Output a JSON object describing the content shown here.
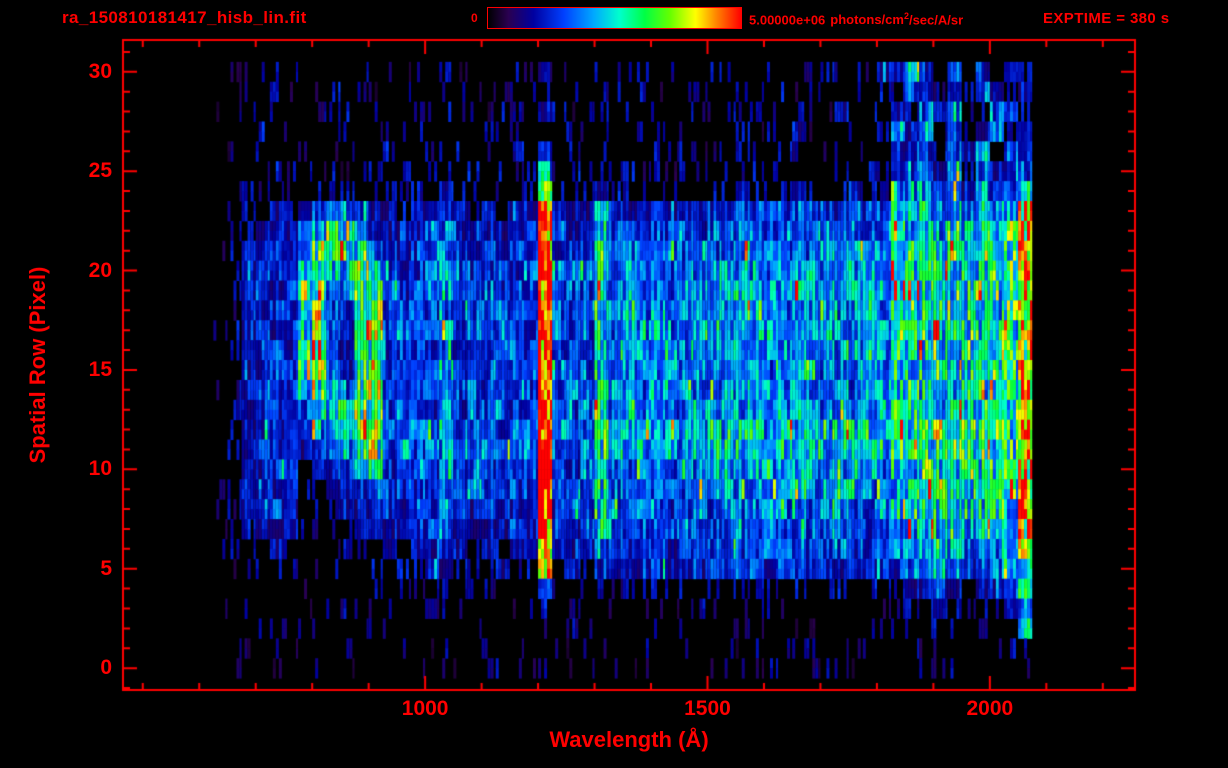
{
  "header": {
    "filename": "ra_150810181417_hisb_lin.fit",
    "exptime": "EXPTIME = 380 s",
    "colorbar": {
      "min_label": "0",
      "max_value": "5.00000e+06",
      "unit_prefix": "photons/cm",
      "unit_sup": "2",
      "unit_suffix": "/sec/A/sr"
    }
  },
  "colors": {
    "background": "#000000",
    "axis": "#ff0000",
    "text": "#ff0000"
  },
  "chart_data": {
    "type": "heatmap",
    "title": "ra_150810181417_hisb_lin.fit",
    "xlabel": "Wavelength (Å)",
    "ylabel": "Spatial Row (Pixel)",
    "x_range": [
      465,
      2257
    ],
    "y_range": [
      -1.1,
      31.6
    ],
    "x_major_ticks": [
      1000,
      1500,
      2000
    ],
    "x_minor_step": 100,
    "y_major_ticks": [
      0,
      5,
      10,
      15,
      20,
      25,
      30
    ],
    "y_minor_step": 1,
    "colorbar": {
      "min": 0,
      "max": 5000000,
      "label": "photons/cm2/sec/A/sr"
    },
    "colormap": [
      [
        0.0,
        "#000000"
      ],
      [
        0.08,
        "#2a0050"
      ],
      [
        0.18,
        "#0000a0"
      ],
      [
        0.3,
        "#0040ff"
      ],
      [
        0.42,
        "#00aaff"
      ],
      [
        0.52,
        "#00ffcc"
      ],
      [
        0.62,
        "#00ff44"
      ],
      [
        0.72,
        "#66ff00"
      ],
      [
        0.82,
        "#ffff00"
      ],
      [
        0.9,
        "#ff8800"
      ],
      [
        1.0,
        "#ff0000"
      ]
    ],
    "features": [
      {
        "name": "lyman-alpha-emission-line",
        "wavelength_A": 1200,
        "rows": [
          5,
          24
        ],
        "appearance": "saturated red/orange vertical line"
      },
      {
        "name": "airglow-blob-arc",
        "wavelength_A": [
          780,
          925
        ],
        "rows": [
          12,
          23
        ],
        "appearance": "bright green hooked ring"
      },
      {
        "name": "emission-line",
        "wavelength_A": 1300,
        "rows": [
          6,
          23
        ],
        "appearance": "green vertical streak"
      },
      {
        "name": "faint-line",
        "wavelength_A": 1030,
        "rows": [
          6,
          23
        ],
        "appearance": "cyan vertical streak"
      },
      {
        "name": "continuum-band",
        "wavelength_A": [
          1250,
          2050
        ],
        "rows": [
          5,
          24
        ],
        "appearance": "blue-green band brightening to long wavelengths"
      },
      {
        "name": "detector-edge-line",
        "wavelength_A": 2060,
        "rows": [
          2,
          24
        ],
        "appearance": "yellow-orange vertical edge"
      },
      {
        "name": "background-noise",
        "wavelength_A": [
          620,
          2075
        ],
        "rows": [
          0,
          30
        ],
        "appearance": "sparse blue/purple speckle"
      }
    ],
    "grid": {
      "x_start": 625,
      "x_step": 25,
      "cols": 58,
      "row_max": 30,
      "rows_order": "top_to_bottom",
      "intensity_scale_max": 15,
      "rows": [
        "0010210201201020201202131202012021021202101202133642514232",
        "0001201020100201120100220101102012010210201201022531425323",
        "0020100112021010212021032012120102102012021030214253612432",
        "0012012021010120101201221201021201201202130212025361423524",
        "0002101202102021220102140122210212012120212021203442536243",
        "0010212120121202212021271212121202121221212021224453625345",
        "00212022122121223212122b2223221221222322232223225564636458",
        "01223234554332334323233e333643343434444445444544667575766c",
        "01233346887433345333334f434754444545555455554555767686777c",
        "02334359a98543445434344f444855455555565556565656787787878d",
        "0234436a77a644456444445f545856555656666566656666888878888d",
        "0234347a55a744546445444f554856565666676667666766898888988d",
        "0133447a449a44445444544f545755565656666566656665888878878c",
        "0234348a439a45446454444f544856565566666656666566878888788d",
        "0134438a438944445444454f454755655656665666566656788878878c",
        "0233447a538a44546445444f545856556565666566656666878887888d",
        "01343469759a44445454444f454755565656665666566566788878788c",
        "0234435878a945446444544f545856565566666566656656878788878d",
        "02343446679a54556455455f555866666767777677767776988989898d",
        "02344334568955456545545f555866676667777677767767898998889d",
        "01334423446744545444544f545755565656666566656665878878878c",
        "02343412334544446454444f454755655565665666566656788878788c",
        "01334312233443445434443f444754554554655656556556787878787c",
        "01233311223333345333343f434644544545554555455545677767767b",
        "01223201122232334323233e333543443444544545445445566765667a",
        "00122100112222233222322d2324333433344343443434344556545568",
        "0001100010111112211121151212121212122122121221222334323347",
        "0010100101100101110110121101101101101011011011011223212234",
        "0001000010101010001001010101010100100100100100101112111126",
        "0000100001000100100100000010001001000010001000100101101011",
        "0000000000100010000010010000000100000001000100010010100100"
      ]
    }
  }
}
